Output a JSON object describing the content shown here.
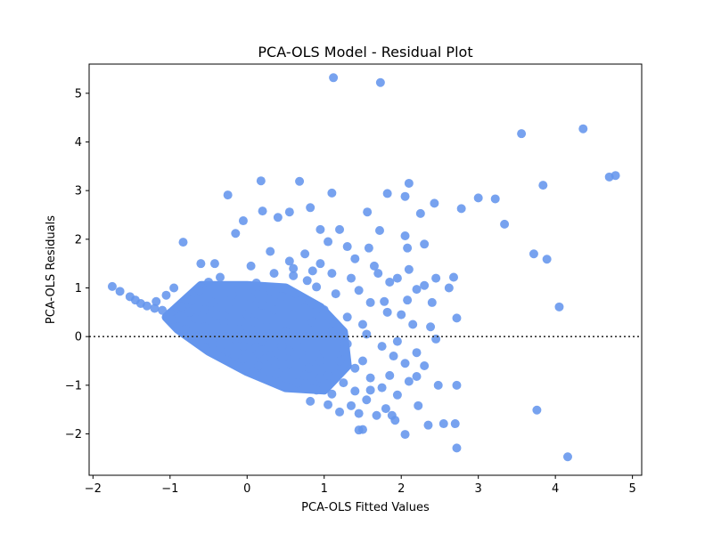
{
  "chart_data": {
    "type": "scatter",
    "title": "PCA-OLS Model - Residual Plot",
    "xlabel": "PCA-OLS Fitted Values",
    "ylabel": "PCA-OLS Residuals",
    "xlim": [
      -2.05,
      5.12
    ],
    "ylim": [
      -2.85,
      5.6
    ],
    "xticks": [
      "−2",
      "−1",
      "0",
      "1",
      "2",
      "3",
      "4",
      "5"
    ],
    "yticks": [
      "−2",
      "−1",
      "0",
      "1",
      "2",
      "3",
      "4",
      "5"
    ],
    "reference_line": {
      "y": 0,
      "style": "dotted",
      "color": "#333333"
    },
    "grid": false,
    "marker_color": "#6495ED",
    "series": [
      {
        "points": [
          [
            1.12,
            5.32
          ],
          [
            1.73,
            5.22
          ],
          [
            3.56,
            4.17
          ],
          [
            4.36,
            4.27
          ],
          [
            4.7,
            3.28
          ],
          [
            4.78,
            3.31
          ],
          [
            3.84,
            3.11
          ],
          [
            3.0,
            2.85
          ],
          [
            3.22,
            2.83
          ],
          [
            3.34,
            2.31
          ],
          [
            2.78,
            2.63
          ],
          [
            3.72,
            1.7
          ],
          [
            3.89,
            1.59
          ],
          [
            4.05,
            0.61
          ],
          [
            3.76,
            -1.51
          ],
          [
            4.16,
            -2.47
          ],
          [
            2.72,
            -2.29
          ],
          [
            2.7,
            -1.79
          ],
          [
            2.55,
            -1.79
          ],
          [
            2.35,
            -1.82
          ],
          [
            2.05,
            -2.01
          ],
          [
            1.88,
            -1.62
          ],
          [
            1.92,
            -1.72
          ],
          [
            1.45,
            -1.92
          ],
          [
            1.5,
            -1.91
          ],
          [
            -1.75,
            1.03
          ],
          [
            -1.65,
            0.93
          ],
          [
            -1.52,
            0.82
          ],
          [
            -1.45,
            0.75
          ],
          [
            -1.38,
            0.68
          ],
          [
            -1.3,
            0.63
          ],
          [
            -1.2,
            0.58
          ],
          [
            -1.1,
            0.54
          ],
          [
            -1.0,
            0.48
          ],
          [
            -0.83,
            1.94
          ],
          [
            -0.25,
            2.91
          ],
          [
            0.18,
            3.2
          ],
          [
            0.68,
            3.19
          ],
          [
            1.1,
            2.95
          ],
          [
            0.82,
            2.65
          ],
          [
            0.2,
            2.58
          ],
          [
            0.55,
            2.56
          ],
          [
            1.56,
            2.56
          ],
          [
            1.82,
            2.94
          ],
          [
            2.1,
            3.15
          ],
          [
            2.05,
            2.88
          ],
          [
            2.43,
            2.74
          ],
          [
            2.25,
            2.53
          ],
          [
            -0.05,
            2.38
          ],
          [
            0.4,
            2.45
          ],
          [
            -0.15,
            2.12
          ],
          [
            0.95,
            2.2
          ],
          [
            1.2,
            2.2
          ],
          [
            1.05,
            1.95
          ],
          [
            1.72,
            2.18
          ],
          [
            2.05,
            2.07
          ],
          [
            2.3,
            1.9
          ],
          [
            2.08,
            1.82
          ],
          [
            0.3,
            1.75
          ],
          [
            0.75,
            1.7
          ],
          [
            1.3,
            1.85
          ],
          [
            1.58,
            1.82
          ],
          [
            0.55,
            1.55
          ],
          [
            -0.6,
            1.5
          ],
          [
            -0.42,
            1.5
          ],
          [
            0.05,
            1.45
          ],
          [
            0.95,
            1.5
          ],
          [
            1.65,
            1.45
          ],
          [
            2.1,
            1.38
          ],
          [
            2.45,
            1.2
          ],
          [
            2.68,
            1.22
          ],
          [
            2.62,
            1.0
          ],
          [
            2.3,
            1.05
          ],
          [
            0.78,
            1.15
          ],
          [
            1.35,
            1.2
          ],
          [
            1.85,
            1.12
          ],
          [
            2.2,
            0.97
          ],
          [
            2.4,
            0.7
          ],
          [
            2.72,
            0.38
          ],
          [
            2.38,
            0.2
          ],
          [
            2.08,
            0.75
          ],
          [
            1.78,
            0.72
          ],
          [
            2.45,
            -0.05
          ],
          [
            2.2,
            -0.33
          ],
          [
            2.3,
            -0.6
          ],
          [
            2.2,
            -0.82
          ],
          [
            2.48,
            -1.0
          ],
          [
            2.72,
            -1.0
          ],
          [
            2.1,
            -0.92
          ],
          [
            1.95,
            -1.2
          ],
          [
            2.22,
            -1.42
          ],
          [
            1.8,
            -1.48
          ],
          [
            1.68,
            -1.62
          ],
          [
            1.45,
            -1.58
          ],
          [
            1.2,
            -1.55
          ],
          [
            1.05,
            -1.4
          ],
          [
            0.82,
            -1.33
          ],
          [
            -1.18,
            0.72
          ],
          [
            -1.05,
            0.85
          ],
          [
            -0.95,
            1.0
          ],
          [
            -0.85,
            0.62
          ],
          [
            -0.72,
            0.75
          ],
          [
            -0.62,
            0.95
          ],
          [
            -0.5,
            1.12
          ],
          [
            -0.35,
            1.22
          ],
          [
            -0.15,
            0.95
          ],
          [
            0.12,
            1.1
          ],
          [
            0.35,
            1.3
          ],
          [
            0.6,
            1.25
          ],
          [
            0.9,
            1.02
          ],
          [
            1.15,
            0.88
          ],
          [
            1.45,
            0.95
          ],
          [
            1.6,
            0.7
          ],
          [
            1.82,
            0.5
          ],
          [
            1.5,
            0.25
          ],
          [
            1.3,
            0.4
          ],
          [
            1.0,
            0.55
          ],
          [
            0.7,
            0.75
          ],
          [
            0.45,
            0.82
          ],
          [
            0.2,
            0.65
          ],
          [
            0.0,
            0.45
          ],
          [
            -0.22,
            0.55
          ],
          [
            -0.45,
            0.7
          ],
          [
            -0.68,
            0.38
          ],
          [
            -0.55,
            0.2
          ],
          [
            -0.35,
            0.05
          ],
          [
            -0.15,
            -0.05
          ],
          [
            0.1,
            -0.25
          ],
          [
            0.3,
            -0.4
          ],
          [
            0.55,
            -0.55
          ],
          [
            0.8,
            -0.65
          ],
          [
            1.05,
            -0.8
          ],
          [
            1.25,
            -0.95
          ],
          [
            1.4,
            -1.12
          ],
          [
            1.55,
            -1.3
          ],
          [
            1.35,
            -1.42
          ],
          [
            1.1,
            -1.18
          ],
          [
            0.9,
            -1.1
          ],
          [
            0.65,
            -0.95
          ],
          [
            0.4,
            -0.75
          ],
          [
            0.15,
            -0.6
          ],
          [
            -0.05,
            -0.45
          ],
          [
            -0.25,
            -0.3
          ],
          [
            -0.45,
            -0.15
          ],
          [
            -0.62,
            0.02
          ],
          [
            -0.8,
            0.15
          ],
          [
            -0.98,
            0.35
          ],
          [
            0.25,
            0.2
          ],
          [
            0.5,
            0.1
          ],
          [
            0.75,
            -0.1
          ],
          [
            1.0,
            -0.3
          ],
          [
            1.2,
            -0.5
          ],
          [
            1.4,
            -0.65
          ],
          [
            1.6,
            -0.85
          ],
          [
            1.75,
            -1.05
          ],
          [
            1.9,
            -0.4
          ],
          [
            1.75,
            -0.2
          ],
          [
            1.55,
            0.05
          ],
          [
            1.3,
            -0.15
          ],
          [
            1.1,
            0.1
          ],
          [
            0.85,
            0.3
          ],
          [
            0.6,
            0.45
          ],
          [
            0.35,
            0.55
          ],
          [
            0.1,
            0.3
          ],
          [
            -0.1,
            0.15
          ],
          [
            -0.3,
            0.3
          ],
          [
            0.45,
            -0.2
          ],
          [
            0.7,
            -0.35
          ],
          [
            0.95,
            -0.5
          ],
          [
            0.2,
            -0.1
          ],
          [
            -0.2,
            0.85
          ],
          [
            0.05,
            0.8
          ],
          [
            0.3,
            0.95
          ],
          [
            0.6,
            1.4
          ],
          [
            0.85,
            1.35
          ],
          [
            1.1,
            1.3
          ],
          [
            1.4,
            1.6
          ],
          [
            1.7,
            1.3
          ],
          [
            1.95,
            1.2
          ],
          [
            2.0,
            0.45
          ],
          [
            2.15,
            0.25
          ],
          [
            1.95,
            -0.1
          ],
          [
            2.05,
            -0.55
          ],
          [
            1.85,
            -0.8
          ],
          [
            1.6,
            -1.1
          ],
          [
            1.5,
            -0.5
          ],
          [
            1.25,
            -0.3
          ],
          [
            0.95,
            -0.85
          ],
          [
            0.75,
            -0.8
          ],
          [
            0.55,
            -0.3
          ],
          [
            0.35,
            -0.5
          ],
          [
            0.15,
            -0.35
          ],
          [
            -0.05,
            -0.2
          ],
          [
            -0.4,
            0.45
          ],
          [
            -0.55,
            0.55
          ],
          [
            -0.75,
            0.5
          ],
          [
            -0.9,
            0.2
          ]
        ]
      }
    ],
    "cluster": {
      "note": "dense band of overlapping points",
      "polygon": [
        [
          -1.05,
          0.4
        ],
        [
          -0.6,
          1.05
        ],
        [
          0.0,
          1.05
        ],
        [
          0.5,
          1.0
        ],
        [
          0.95,
          0.6
        ],
        [
          1.25,
          0.1
        ],
        [
          1.3,
          -0.6
        ],
        [
          1.0,
          -1.1
        ],
        [
          0.5,
          -1.05
        ],
        [
          0.0,
          -0.72
        ],
        [
          -0.5,
          -0.3
        ],
        [
          -0.9,
          0.15
        ]
      ]
    }
  }
}
